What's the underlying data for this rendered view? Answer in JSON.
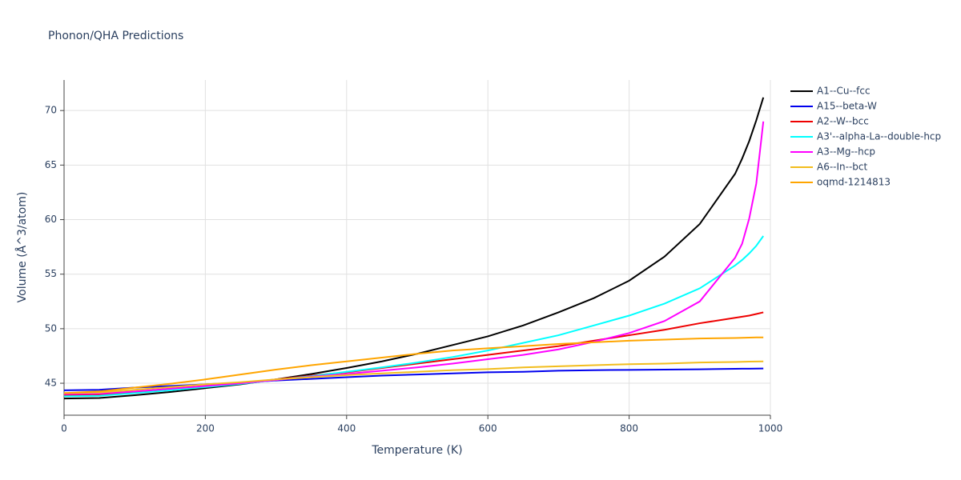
{
  "chart_data": {
    "type": "line",
    "title": "Phonon/QHA Predictions",
    "x_label": "Temperature (K)",
    "y_label": "Volume (Å^3/atom)",
    "x": [
      0,
      50,
      100,
      150,
      200,
      250,
      300,
      350,
      400,
      450,
      500,
      550,
      600,
      650,
      700,
      750,
      800,
      850,
      900,
      950,
      960,
      970,
      980,
      990
    ],
    "series": [
      {
        "name": "A1--Cu--fcc",
        "color": "#000000",
        "values": [
          43.6,
          43.65,
          43.9,
          44.2,
          44.55,
          44.9,
          45.35,
          45.85,
          46.4,
          47.0,
          47.7,
          48.5,
          49.3,
          50.3,
          51.5,
          52.8,
          54.4,
          56.6,
          59.6,
          64.2,
          65.6,
          67.2,
          69.1,
          71.2
        ]
      },
      {
        "name": "A15--beta-W",
        "color": "#0000ee",
        "values": [
          44.35,
          44.4,
          44.6,
          44.75,
          44.9,
          45.05,
          45.25,
          45.4,
          45.55,
          45.7,
          45.8,
          45.9,
          46.0,
          46.05,
          46.15,
          46.2,
          46.22,
          46.25,
          46.28,
          46.32,
          46.33,
          46.33,
          46.34,
          46.35
        ]
      },
      {
        "name": "A2--W--bcc",
        "color": "#ee0000",
        "values": [
          43.9,
          43.95,
          44.2,
          44.5,
          44.75,
          45.0,
          45.35,
          45.7,
          46.0,
          46.4,
          46.8,
          47.2,
          47.6,
          48.0,
          48.4,
          48.9,
          49.4,
          49.9,
          50.5,
          51.0,
          51.1,
          51.2,
          51.35,
          51.5
        ]
      },
      {
        "name": "A3'--alpha-La--double-hcp",
        "color": "#00ffff",
        "values": [
          43.8,
          43.85,
          44.1,
          44.35,
          44.65,
          44.95,
          45.3,
          45.65,
          46.05,
          46.45,
          46.9,
          47.4,
          48.0,
          48.7,
          49.4,
          50.3,
          51.2,
          52.3,
          53.7,
          55.8,
          56.3,
          56.9,
          57.6,
          58.5
        ]
      },
      {
        "name": "A3--Mg--hcp",
        "color": "#ff00ff",
        "values": [
          44.0,
          44.05,
          44.25,
          44.5,
          44.75,
          45.0,
          45.3,
          45.6,
          45.85,
          46.15,
          46.45,
          46.8,
          47.2,
          47.6,
          48.1,
          48.8,
          49.6,
          50.7,
          52.5,
          56.5,
          57.8,
          60.1,
          63.3,
          69.0
        ]
      },
      {
        "name": "A6--In--bct",
        "color": "#f2bd1d",
        "values": [
          44.1,
          44.15,
          44.4,
          44.65,
          44.9,
          45.1,
          45.35,
          45.55,
          45.75,
          45.9,
          46.05,
          46.2,
          46.3,
          46.45,
          46.55,
          46.65,
          46.75,
          46.8,
          46.9,
          46.95,
          46.97,
          46.98,
          46.99,
          47.0
        ]
      },
      {
        "name": "oqmd-1214813",
        "color": "#ffa500",
        "values": [
          44.1,
          44.25,
          44.6,
          44.95,
          45.35,
          45.8,
          46.25,
          46.65,
          47.0,
          47.35,
          47.7,
          48.0,
          48.2,
          48.4,
          48.6,
          48.75,
          48.9,
          49.0,
          49.1,
          49.15,
          49.17,
          49.18,
          49.2,
          49.2
        ]
      }
    ],
    "xlim": [
      0,
      1000
    ],
    "xticks": [
      0,
      200,
      400,
      600,
      800,
      1000
    ],
    "ylim": [
      42.07,
      72.8
    ],
    "yticks": [
      45,
      50,
      55,
      60,
      65,
      70
    ],
    "grid": true,
    "legend": "right"
  }
}
